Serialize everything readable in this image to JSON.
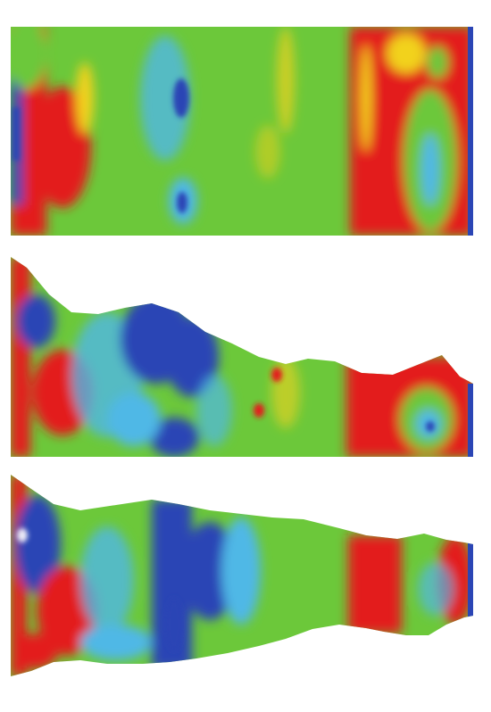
{
  "figure": {
    "description_panels": 3,
    "colors": {
      "background": "#ffffff",
      "high": "#e31a1c",
      "mid_high": "#f2d21b",
      "mid": "#6cc83a",
      "mid_low": "#4fb8e6",
      "low": "#2b45b5"
    },
    "panels": [
      {
        "id": "panel-top"
      },
      {
        "id": "panel-middle"
      },
      {
        "id": "panel-bottom"
      }
    ]
  }
}
